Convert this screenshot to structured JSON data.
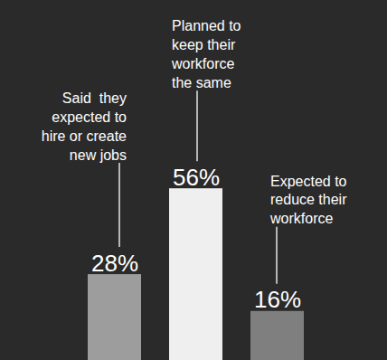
{
  "chart_data": {
    "type": "bar",
    "categories": [
      null,
      null,
      null
    ],
    "values": [
      28,
      56,
      16
    ],
    "value_labels": [
      "28%",
      "56%",
      "16%"
    ],
    "colors": [
      "#9d9d9d",
      "#efefef",
      "#7f7f7f"
    ],
    "annotations": [
      "Said  they\nexpected to\nhire or create\nnew jobs",
      "Planned to\nkeep their\nworkforce\nthe same",
      "Expected to\nreduce their\nworkforce"
    ],
    "ylim": [
      0,
      100
    ],
    "data_labels": true,
    "tick_labels": false
  }
}
